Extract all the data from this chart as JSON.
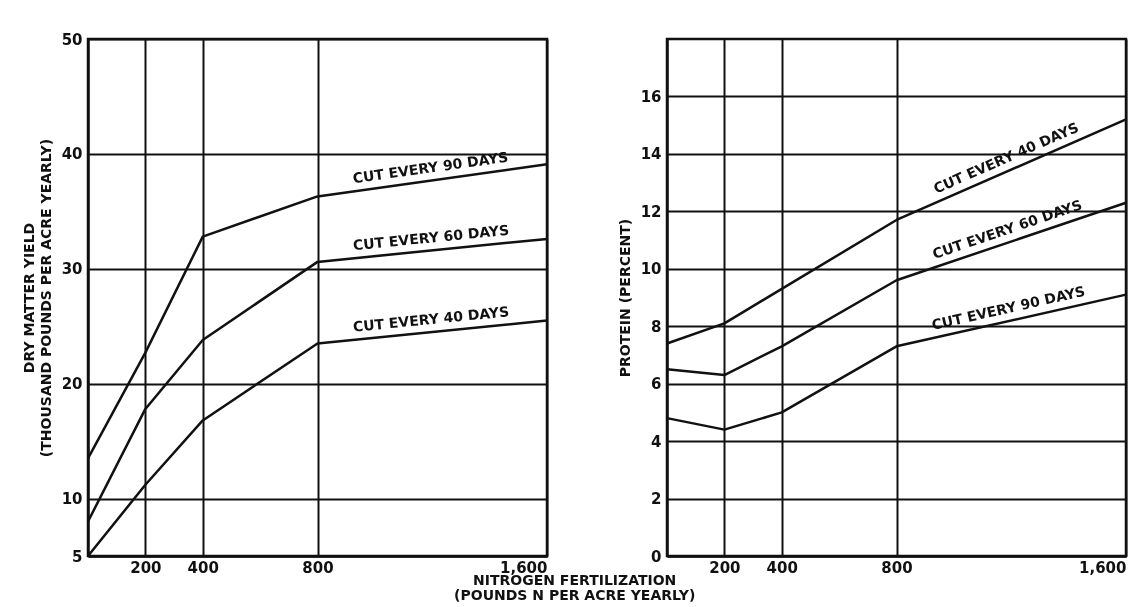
{
  "chart_data": [
    {
      "type": "line",
      "xlabel": "NITROGEN FERTILIZATION\n(POUNDS N PER ACRE YEARLY)",
      "ylabel": "DRY MATTER YIELD\n(THOUSAND POUNDS PER ACRE YEARLY)",
      "x": [
        0,
        200,
        400,
        800,
        1600
      ],
      "series": [
        {
          "name": "CUT EVERY 90 DAYS",
          "color": "#111111",
          "values": [
            13.5,
            22.7,
            32.8,
            36.3,
            39.1
          ]
        },
        {
          "name": "CUT EVERY 60 DAYS",
          "color": "#111111",
          "values": [
            8,
            17.8,
            23.8,
            30.6,
            32.6
          ]
        },
        {
          "name": "CUT EVERY 40 DAYS",
          "color": "#111111",
          "values": [
            5,
            11.2,
            16.8,
            23.5,
            25.5
          ]
        }
      ],
      "xlim": [
        0,
        1600
      ],
      "xticks": [
        200,
        400,
        800,
        {
          "value": 1600,
          "label": "1,600"
        }
      ],
      "ylim": [
        5,
        50
      ],
      "yticks": [
        5,
        10,
        20,
        30,
        40,
        50
      ],
      "grid": true,
      "legend": false,
      "marker": "none",
      "line_style": "solid"
    },
    {
      "type": "line",
      "ylabel": "PROTEIN (PERCENT)",
      "x": [
        0,
        200,
        400,
        800,
        1600
      ],
      "series": [
        {
          "name": "CUT EVERY 40 DAYS",
          "color": "#111111",
          "values": [
            7.4,
            8.1,
            9.3,
            11.7,
            15.2
          ]
        },
        {
          "name": "CUT EVERY 60 DAYS",
          "color": "#111111",
          "values": [
            6.5,
            6.3,
            7.3,
            9.6,
            12.3
          ]
        },
        {
          "name": "CUT EVERY 90 DAYS",
          "color": "#111111",
          "values": [
            4.8,
            4.4,
            5.0,
            7.3,
            9.1
          ]
        }
      ],
      "xlim": [
        0,
        1600
      ],
      "xticks": [
        200,
        400,
        800,
        {
          "value": 1600,
          "label": "1,600"
        }
      ],
      "ylim": [
        0,
        18
      ],
      "yticks": [
        0,
        2,
        4,
        6,
        8,
        10,
        12,
        14,
        16
      ],
      "grid": true,
      "legend": false,
      "marker": "none",
      "line_style": "solid"
    }
  ]
}
